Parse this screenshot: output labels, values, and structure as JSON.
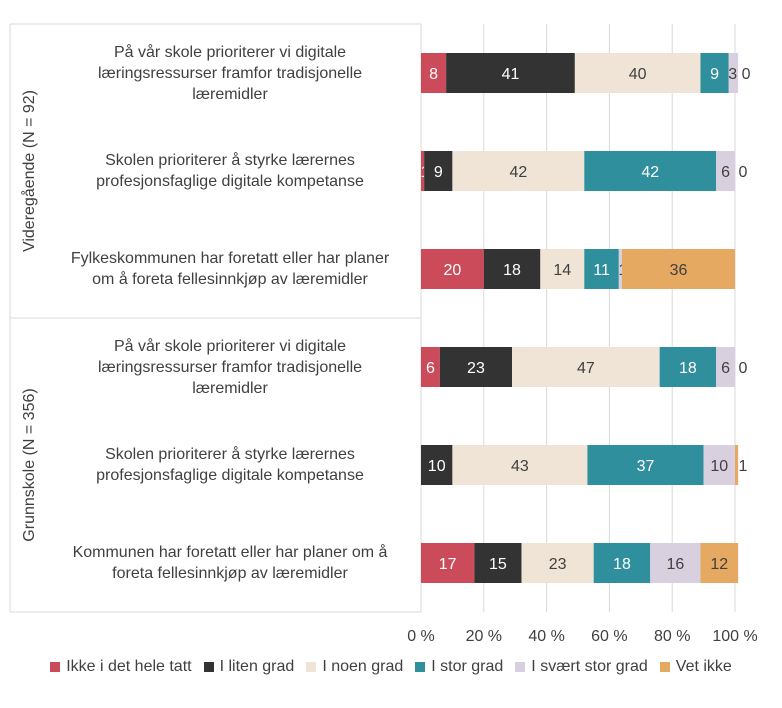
{
  "chart_data": {
    "type": "bar",
    "orientation": "horizontal",
    "stacked": "percent",
    "groups": [
      {
        "label": "Videregående (N = 92)",
        "rows": [
          0,
          1,
          2
        ]
      },
      {
        "label": "Grunnskole (N = 356)",
        "rows": [
          3,
          4,
          5
        ]
      }
    ],
    "categories": [
      "På vår skole prioriterer vi digitale læringsressurser framfor tradisjonelle læremidler",
      "Skolen prioriterer å styrke lærernes profesjonsfaglige digitale kompetanse",
      "Fylkeskommunen har foretatt eller har planer om å foreta fellesinnkjøp av læremidler",
      "På vår skole prioriterer vi digitale læringsressurser framfor tradisjonelle læremidler",
      "Skolen prioriterer å styrke lærernes profesjonsfaglige digitale kompetanse",
      "Kommunen har foretatt eller har planer om å foreta fellesinnkjøp av læremidler"
    ],
    "category_lines": [
      [
        "På vår skole prioriterer vi digitale",
        "læringsressurser framfor tradisjonelle",
        "læremidler"
      ],
      [
        "Skolen prioriterer å styrke lærernes",
        "profesjonsfaglige digitale kompetanse"
      ],
      [
        "Fylkeskommunen har foretatt eller har planer",
        "om å foreta fellesinnkjøp av læremidler"
      ],
      [
        "På vår skole prioriterer vi digitale",
        "læringsressurser framfor tradisjonelle",
        "læremidler"
      ],
      [
        "Skolen prioriterer å styrke lærernes",
        "profesjonsfaglige digitale kompetanse"
      ],
      [
        "Kommunen har foretatt eller har planer om å",
        "foreta fellesinnkjøp av læremidler"
      ]
    ],
    "series": [
      {
        "name": "Ikke i det hele tatt",
        "color": "#cb4b5a",
        "values": [
          8,
          1,
          20,
          6,
          0,
          17
        ]
      },
      {
        "name": "I liten grad",
        "color": "#333333",
        "values": [
          41,
          9,
          18,
          23,
          10,
          15
        ]
      },
      {
        "name": "I noen grad",
        "color": "#efe4d6",
        "values": [
          40,
          42,
          14,
          47,
          43,
          23
        ]
      },
      {
        "name": "I stor grad",
        "color": "#2f8f9d",
        "values": [
          9,
          42,
          11,
          18,
          37,
          18
        ]
      },
      {
        "name": "I svært stor grad",
        "color": "#d9d0df",
        "values": [
          3,
          6,
          1,
          6,
          10,
          16
        ]
      },
      {
        "name": "Vet ikke",
        "color": "#e6a962",
        "values": [
          0,
          0,
          36,
          0,
          1,
          12
        ]
      }
    ],
    "labels": [
      [
        "8",
        "41",
        "40",
        "9",
        "3",
        "0"
      ],
      [
        "1",
        "9",
        "42",
        "42",
        "6",
        "0"
      ],
      [
        "20",
        "18",
        "14",
        "11",
        "1",
        "36"
      ],
      [
        "6",
        "23",
        "47",
        "18",
        "6",
        "0"
      ],
      [
        "0",
        "10",
        "43",
        "37",
        "10",
        "1"
      ],
      [
        "17",
        "15",
        "23",
        "18",
        "16",
        "12"
      ]
    ],
    "x_ticks": [
      "0 %",
      "20 %",
      "40 %",
      "60 %",
      "80 %",
      "100 %"
    ],
    "xlim": [
      0,
      100
    ],
    "grid": true,
    "legend_position": "bottom"
  }
}
